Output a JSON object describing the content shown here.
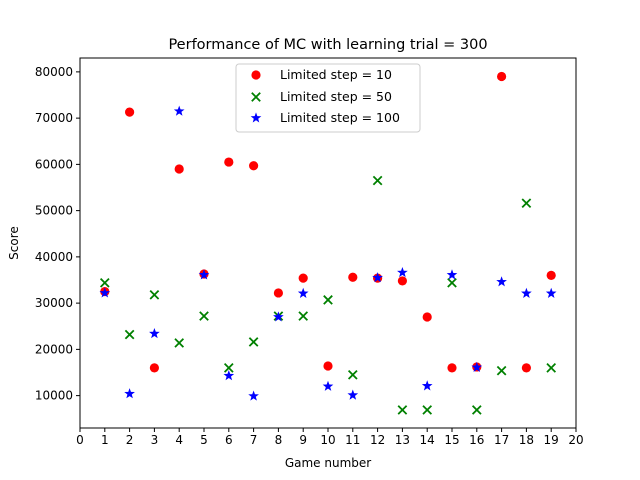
{
  "chart_data": {
    "type": "scatter",
    "title": "Performance of MC with learning trial = 300",
    "xlabel": "Game number",
    "ylabel": "Score",
    "xlim": [
      0,
      20
    ],
    "ylim": [
      3000,
      83000
    ],
    "xticks": [
      0,
      1,
      2,
      3,
      4,
      5,
      6,
      7,
      8,
      9,
      10,
      11,
      12,
      13,
      14,
      15,
      16,
      17,
      18,
      19,
      20
    ],
    "yticks": [
      10000,
      20000,
      30000,
      40000,
      50000,
      60000,
      70000,
      80000
    ],
    "grid": false,
    "legend_position": "top-center",
    "series": [
      {
        "name": "Limited step = 10",
        "marker": "circle",
        "color": "#ff0000",
        "x": [
          1,
          2,
          3,
          4,
          5,
          6,
          7,
          8,
          9,
          10,
          11,
          12,
          13,
          14,
          15,
          16,
          17,
          18,
          19
        ],
        "y": [
          32500,
          71300,
          16000,
          59000,
          36300,
          60500,
          59700,
          32200,
          35400,
          16400,
          35600,
          35400,
          34800,
          27000,
          16000,
          16200,
          79000,
          16000,
          36000
        ]
      },
      {
        "name": "Limited step = 50",
        "marker": "x",
        "color": "#008000",
        "x": [
          1,
          2,
          3,
          4,
          5,
          6,
          7,
          8,
          9,
          10,
          11,
          12,
          13,
          14,
          15,
          16,
          17,
          18,
          19
        ],
        "y": [
          34400,
          23200,
          31800,
          21400,
          27200,
          16000,
          21600,
          27200,
          27200,
          30700,
          14500,
          56500,
          6900,
          6900,
          34400,
          6900,
          15400,
          51600,
          16000
        ]
      },
      {
        "name": "Limited step = 100",
        "marker": "star",
        "color": "#0000ff",
        "x": [
          1,
          2,
          3,
          4,
          5,
          6,
          7,
          8,
          9,
          10,
          11,
          12,
          13,
          14,
          15,
          16,
          17,
          18,
          19
        ],
        "y": [
          32200,
          10400,
          23400,
          71500,
          36100,
          14300,
          9900,
          27000,
          32100,
          12000,
          10100,
          35500,
          36600,
          12100,
          36100,
          16100,
          34600,
          32100,
          32100
        ]
      }
    ]
  }
}
